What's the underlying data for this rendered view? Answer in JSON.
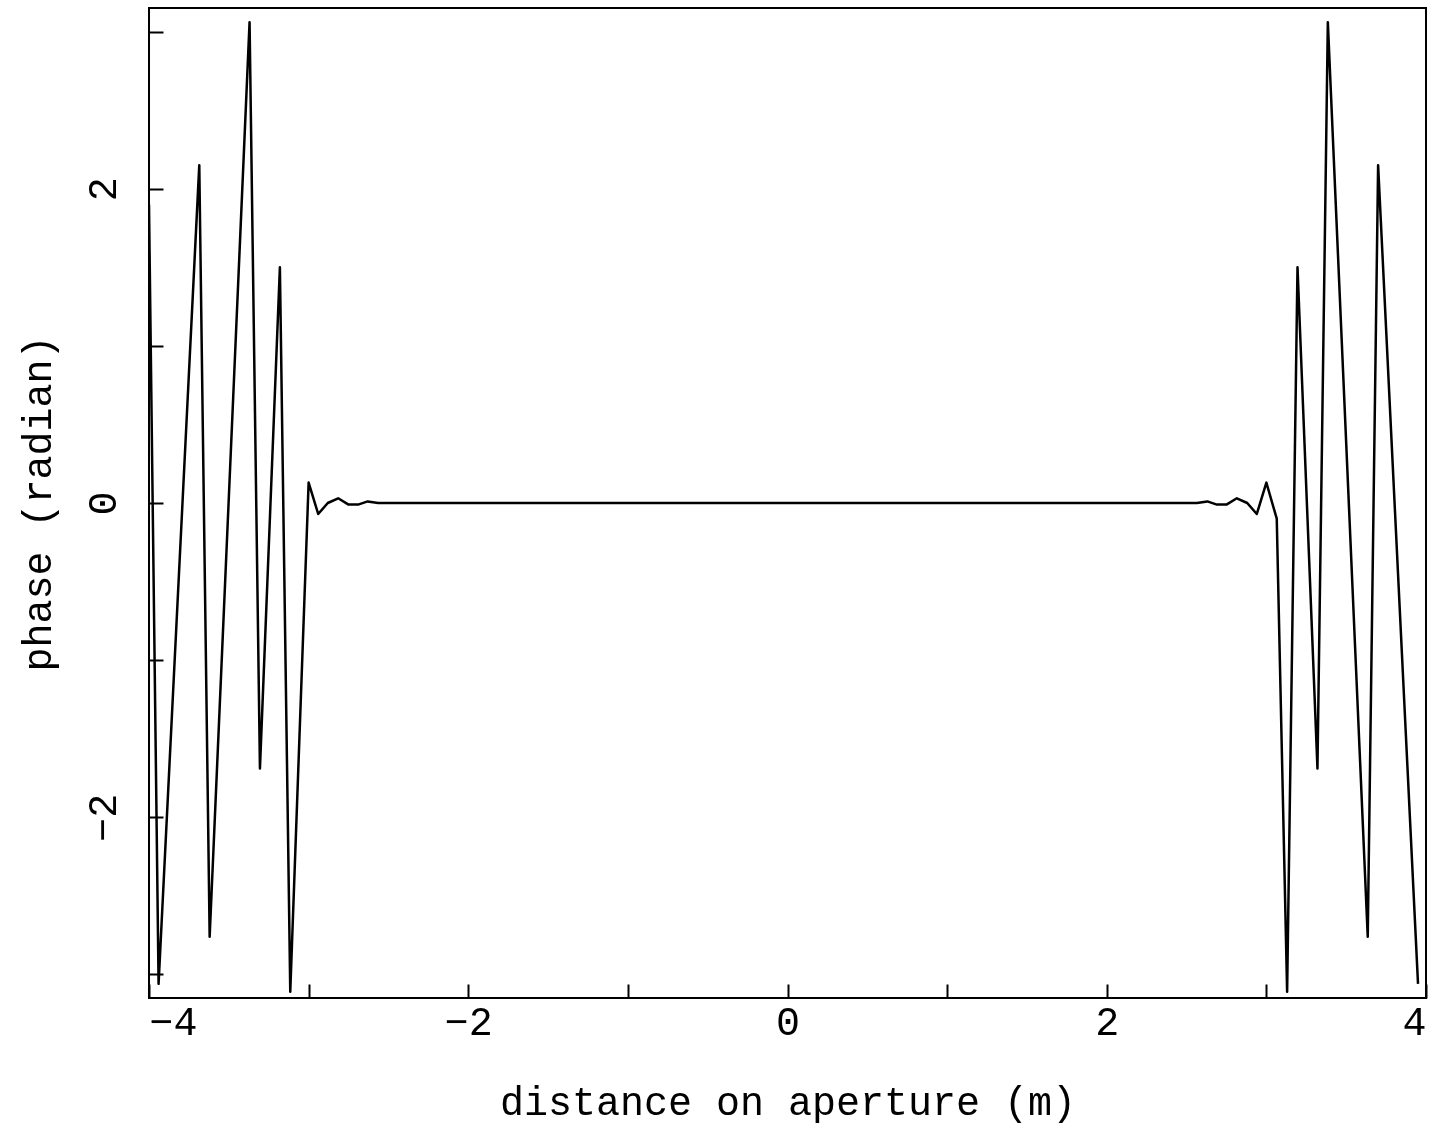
{
  "chart_data": {
    "type": "line",
    "xlabel": "distance on aperture (m)",
    "ylabel": "phase (radian)",
    "x": [
      -4,
      -3.94,
      -3.685,
      -3.62,
      -3.37,
      -3.305,
      -3.18,
      -3.115,
      -3.0,
      -2.94,
      -2.88,
      -2.815,
      -2.75,
      -2.69,
      -2.63,
      -2.565,
      -2.5,
      0,
      2.5,
      2.565,
      2.63,
      2.69,
      2.75,
      2.815,
      2.88,
      2.94,
      3.0,
      3.065,
      3.13,
      3.195,
      3.32,
      3.385,
      3.635,
      3.7,
      3.95
    ],
    "series": [
      {
        "color": "#000000",
        "values": [
          1.9,
          -3.06,
          2.15,
          -2.76,
          3.06,
          -1.69,
          1.5,
          -3.11,
          0.13,
          -0.07,
          0,
          0.03,
          -0.01,
          -0.01,
          0.01,
          0,
          0,
          0,
          0,
          0,
          0.01,
          -0.01,
          -0.01,
          0.03,
          0,
          -0.07,
          0.13,
          -0.1,
          -3.11,
          1.5,
          -1.69,
          3.06,
          -2.76,
          2.15,
          -3.06
        ]
      }
    ],
    "xlim": [
      -4,
      4
    ],
    "xticks": [
      -4,
      {
        "value": -3,
        "label": null
      },
      -2,
      {
        "value": -1,
        "label": null
      },
      0,
      {
        "value": 1,
        "label": null
      },
      2,
      {
        "value": 3,
        "label": null
      },
      4
    ],
    "ylim": [
      -3.15,
      3.15
    ],
    "yticks": [
      {
        "value": -3,
        "label": null
      },
      -2,
      {
        "value": -1,
        "label": null
      },
      0,
      {
        "value": 1,
        "label": null
      },
      2,
      {
        "value": 3,
        "label": null
      }
    ],
    "grid": false,
    "line_style": "solid",
    "marker": "none"
  }
}
